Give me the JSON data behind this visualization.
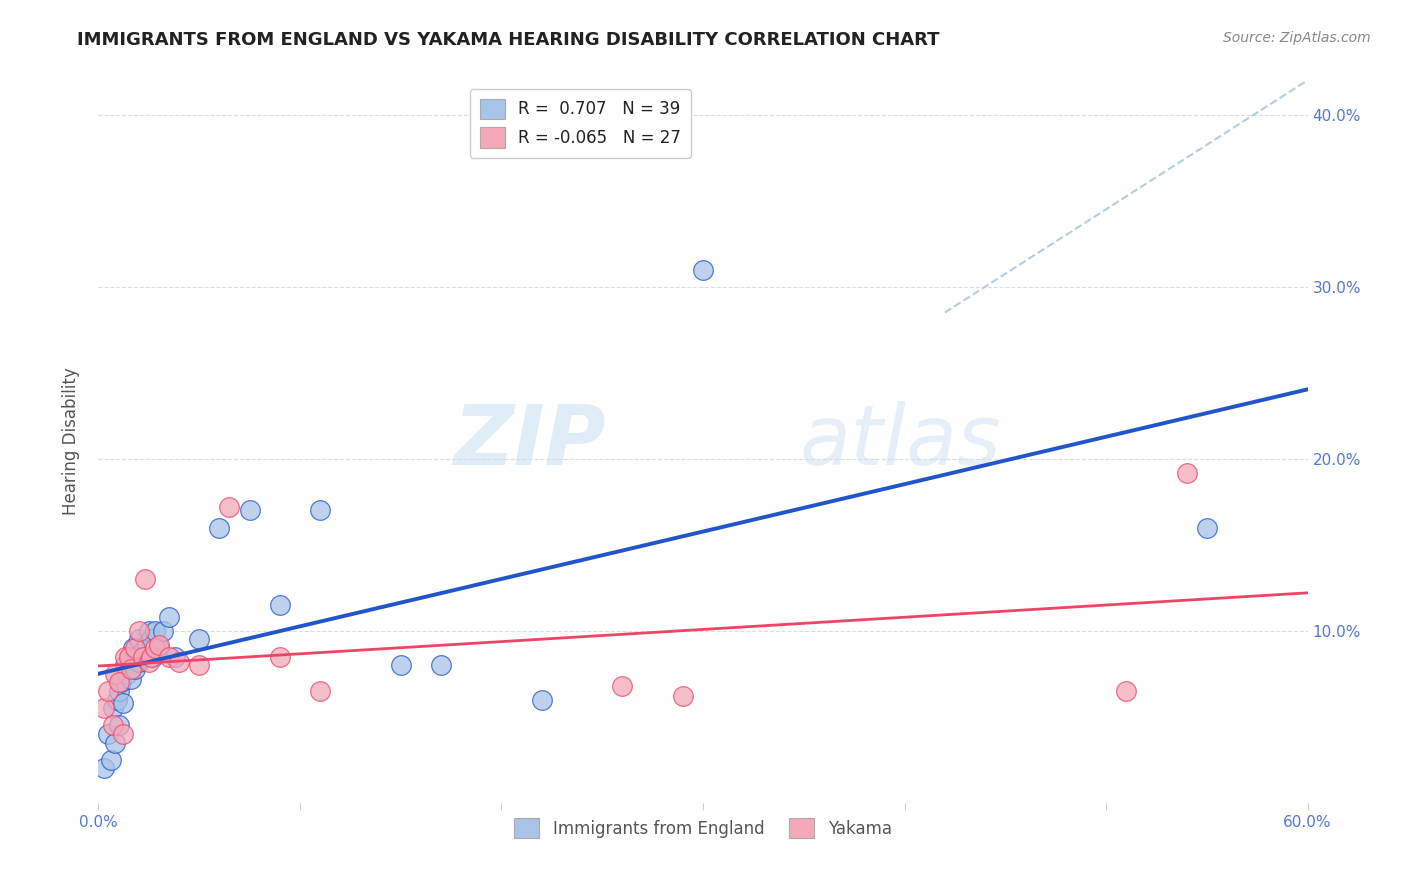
{
  "title": "IMMIGRANTS FROM ENGLAND VS YAKAMA HEARING DISABILITY CORRELATION CHART",
  "source": "Source: ZipAtlas.com",
  "ylabel": "Hearing Disability",
  "xlim": [
    0.0,
    0.6
  ],
  "ylim": [
    0.0,
    0.42
  ],
  "xticks": [
    0.0,
    0.1,
    0.2,
    0.3,
    0.4,
    0.5,
    0.6
  ],
  "xticklabels": [
    "0.0%",
    "",
    "",
    "",
    "",
    "",
    "60.0%"
  ],
  "yticks": [
    0.0,
    0.1,
    0.2,
    0.3,
    0.4
  ],
  "yticklabels_right": [
    "",
    "10.0%",
    "20.0%",
    "30.0%",
    "40.0%"
  ],
  "blue_r": 0.707,
  "blue_n": 39,
  "pink_r": -0.065,
  "pink_n": 27,
  "blue_scatter_color": "#a8c4e8",
  "pink_scatter_color": "#f4a8b8",
  "blue_line_color": "#2255cc",
  "pink_line_color": "#ee4466",
  "trend_line_color": "#b0c8d8",
  "watermark_zip": "ZIP",
  "watermark_atlas": "atlas",
  "grid_color": "#dddddd",
  "tick_color": "#5577cc",
  "label_color": "#555555",
  "title_color": "#222222",
  "source_color": "#888888",
  "blue_scatter_x": [
    0.003,
    0.005,
    0.006,
    0.007,
    0.008,
    0.009,
    0.01,
    0.01,
    0.011,
    0.012,
    0.013,
    0.014,
    0.015,
    0.016,
    0.017,
    0.018,
    0.019,
    0.02,
    0.02,
    0.022,
    0.024,
    0.025,
    0.026,
    0.027,
    0.028,
    0.03,
    0.032,
    0.035,
    0.038,
    0.05,
    0.06,
    0.075,
    0.09,
    0.11,
    0.15,
    0.17,
    0.22,
    0.3,
    0.55
  ],
  "blue_scatter_y": [
    0.02,
    0.04,
    0.025,
    0.055,
    0.035,
    0.06,
    0.065,
    0.045,
    0.07,
    0.058,
    0.08,
    0.075,
    0.085,
    0.072,
    0.09,
    0.078,
    0.085,
    0.082,
    0.095,
    0.088,
    0.092,
    0.1,
    0.095,
    0.085,
    0.1,
    0.09,
    0.1,
    0.108,
    0.085,
    0.095,
    0.16,
    0.17,
    0.115,
    0.17,
    0.08,
    0.08,
    0.06,
    0.31,
    0.16
  ],
  "pink_scatter_x": [
    0.003,
    0.005,
    0.007,
    0.008,
    0.01,
    0.012,
    0.013,
    0.015,
    0.016,
    0.018,
    0.02,
    0.022,
    0.023,
    0.025,
    0.026,
    0.028,
    0.03,
    0.035,
    0.04,
    0.05,
    0.065,
    0.09,
    0.11,
    0.26,
    0.29,
    0.51,
    0.54
  ],
  "pink_scatter_y": [
    0.055,
    0.065,
    0.045,
    0.075,
    0.07,
    0.04,
    0.085,
    0.085,
    0.078,
    0.09,
    0.1,
    0.085,
    0.13,
    0.082,
    0.085,
    0.09,
    0.092,
    0.085,
    0.082,
    0.08,
    0.172,
    0.085,
    0.065,
    0.068,
    0.062,
    0.065,
    0.192
  ]
}
